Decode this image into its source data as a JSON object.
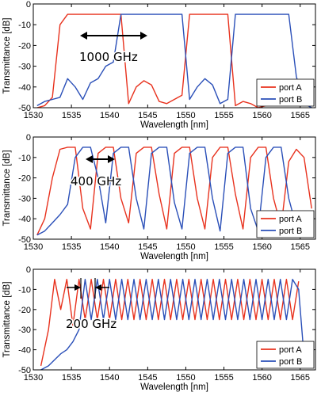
{
  "chart_data": [
    {
      "type": "line",
      "xlabel": "Wavelength [nm]",
      "ylabel": "Transmittance [dB]",
      "xlim": [
        1530,
        1567
      ],
      "ylim": [
        -50,
        0
      ],
      "xticks": [
        1530,
        1535,
        1540,
        1545,
        1550,
        1555,
        1560,
        1565
      ],
      "yticks": [
        0,
        -10,
        -20,
        -30,
        -40,
        -50
      ],
      "legend": "bottom-right",
      "annotation": "1000 GHz",
      "series": [
        {
          "name": "port A",
          "color": "#e8321e",
          "x": [
            1530.5,
            1531.5,
            1532.5,
            1533.5,
            1534.5,
            1535.5,
            1536.5,
            1537.5,
            1538.5,
            1539.5,
            1540.5,
            1541.5,
            1542.5,
            1543.5,
            1544.5,
            1545.5,
            1546.5,
            1547.5,
            1548.5,
            1549.5,
            1550.5,
            1551.5,
            1552.5,
            1553.5,
            1554.5,
            1555.5,
            1556.5,
            1557.5,
            1558.5,
            1559.5,
            1560.5,
            1561.5,
            1562.5,
            1563.5,
            1564.5,
            1565.5,
            1566.5
          ],
          "values": [
            -50,
            -49,
            -45,
            -10,
            -5,
            -5,
            -5,
            -5,
            -5,
            -5,
            -5,
            -5,
            -48,
            -40,
            -37,
            -39,
            -47,
            -48,
            -46,
            -44,
            -5,
            -5,
            -5,
            -5,
            -5,
            -5,
            -49,
            -47,
            -48,
            -50,
            -49,
            -48,
            -47,
            -48,
            -46,
            -47,
            -48
          ]
        },
        {
          "name": "port B",
          "color": "#2a4fb8",
          "x": [
            1530.5,
            1531.5,
            1532.5,
            1533.5,
            1534.5,
            1535.5,
            1536.5,
            1537.5,
            1538.5,
            1539.5,
            1540.5,
            1541.5,
            1542.5,
            1543.5,
            1544.5,
            1545.5,
            1546.5,
            1547.5,
            1548.5,
            1549.5,
            1550.5,
            1551.5,
            1552.5,
            1553.5,
            1554.5,
            1555.5,
            1556.5,
            1557.5,
            1558.5,
            1559.5,
            1560.5,
            1561.5,
            1562.5,
            1563.5,
            1564.5,
            1565.5,
            1566.5
          ],
          "values": [
            -49,
            -47,
            -46,
            -45,
            -36,
            -40,
            -46,
            -38,
            -36,
            -30,
            -28,
            -5,
            -5,
            -5,
            -5,
            -5,
            -5,
            -5,
            -5,
            -5,
            -46,
            -40,
            -36,
            -39,
            -48,
            -46,
            -5,
            -5,
            -5,
            -5,
            -5,
            -5,
            -5,
            -5,
            -35,
            -48,
            -50
          ]
        }
      ]
    },
    {
      "type": "line",
      "xlabel": "Wavelength [nm]",
      "ylabel": "Transmittance [dB]",
      "xlim": [
        1530,
        1567
      ],
      "ylim": [
        -50,
        0
      ],
      "xticks": [
        1530,
        1535,
        1540,
        1545,
        1550,
        1555,
        1560,
        1565
      ],
      "yticks": [
        0,
        -10,
        -20,
        -30,
        -40,
        -50
      ],
      "legend": "bottom-right",
      "annotation": "400 GHz",
      "series": [
        {
          "name": "port A",
          "color": "#e8321e",
          "x": [
            1530.5,
            1531.5,
            1532.5,
            1533.5,
            1534.5,
            1535.5,
            1536.5,
            1537.5,
            1538.5,
            1539.5,
            1540.5,
            1541.5,
            1542.5,
            1543.5,
            1544.5,
            1545.5,
            1546.5,
            1547.5,
            1548.5,
            1549.5,
            1550.5,
            1551.5,
            1552.5,
            1553.5,
            1554.5,
            1555.5,
            1556.5,
            1557.5,
            1558.5,
            1559.5,
            1560.5,
            1561.5,
            1562.5,
            1563.5,
            1564.5,
            1565.5,
            1566.5
          ],
          "values": [
            -48,
            -40,
            -20,
            -6,
            -5,
            -5,
            -35,
            -45,
            -8,
            -5,
            -5,
            -30,
            -42,
            -8,
            -5,
            -5,
            -28,
            -45,
            -8,
            -5,
            -5,
            -30,
            -45,
            -10,
            -5,
            -5,
            -28,
            -45,
            -10,
            -5,
            -5,
            -30,
            -44,
            -12,
            -6,
            -10,
            -35
          ]
        },
        {
          "name": "port B",
          "color": "#2a4fb8",
          "x": [
            1530.5,
            1531.5,
            1532.5,
            1533.5,
            1534.5,
            1535.5,
            1536.5,
            1537.5,
            1538.5,
            1539.5,
            1540.5,
            1541.5,
            1542.5,
            1543.5,
            1544.5,
            1545.5,
            1546.5,
            1547.5,
            1548.5,
            1549.5,
            1550.5,
            1551.5,
            1552.5,
            1553.5,
            1554.5,
            1555.5,
            1556.5,
            1557.5,
            1558.5,
            1559.5,
            1560.5,
            1561.5,
            1562.5,
            1563.5,
            1564.5,
            1565.5,
            1566.5
          ],
          "values": [
            -48,
            -46,
            -42,
            -38,
            -33,
            -10,
            -5,
            -5,
            -20,
            -42,
            -8,
            -5,
            -5,
            -30,
            -45,
            -8,
            -5,
            -5,
            -32,
            -45,
            -8,
            -5,
            -5,
            -30,
            -46,
            -8,
            -5,
            -5,
            -35,
            -46,
            -10,
            -5,
            -5,
            -30,
            -44,
            -45,
            -48
          ]
        }
      ]
    },
    {
      "type": "line",
      "xlabel": "Wavelength [nm]",
      "ylabel": "Transmittance [dB]",
      "xlim": [
        1530,
        1567
      ],
      "ylim": [
        -50,
        0
      ],
      "xticks": [
        1530,
        1535,
        1540,
        1545,
        1550,
        1555,
        1560,
        1565
      ],
      "yticks": [
        0,
        -10,
        -20,
        -30,
        -40,
        -50
      ],
      "legend": "bottom-right",
      "annotation": "200 GHz",
      "series": [
        {
          "name": "port A",
          "color": "#e8321e",
          "x": [
            1531.0,
            1532.0,
            1532.8,
            1533.6,
            1534.4,
            1535.2,
            1536.0,
            1536.8,
            1537.6,
            1538.4,
            1539.2,
            1540.0,
            1540.8,
            1541.6,
            1542.4,
            1543.2,
            1544.0,
            1544.8,
            1545.6,
            1546.4,
            1547.2,
            1548.0,
            1548.8,
            1549.6,
            1550.4,
            1551.2,
            1552.0,
            1552.8,
            1553.6,
            1554.4,
            1555.2,
            1556.0,
            1556.8,
            1557.6,
            1558.4,
            1559.2,
            1560.0,
            1560.8,
            1561.6,
            1562.4,
            1563.2,
            1564.0,
            1564.8
          ],
          "values": [
            -48,
            -30,
            -5,
            -20,
            -5,
            -28,
            -5,
            -25,
            -5,
            -25,
            -5,
            -25,
            -5,
            -25,
            -5,
            -25,
            -5,
            -25,
            -5,
            -25,
            -5,
            -25,
            -5,
            -25,
            -5,
            -25,
            -5,
            -25,
            -5,
            -25,
            -5,
            -25,
            -5,
            -25,
            -5,
            -25,
            -5,
            -25,
            -5,
            -25,
            -5,
            -25,
            -6
          ]
        },
        {
          "name": "port B",
          "color": "#2a4fb8",
          "x": [
            1531.0,
            1532.0,
            1532.8,
            1533.6,
            1534.4,
            1535.2,
            1536.0,
            1536.8,
            1537.6,
            1538.4,
            1539.2,
            1540.0,
            1540.8,
            1541.6,
            1542.4,
            1543.2,
            1544.0,
            1544.8,
            1545.6,
            1546.4,
            1547.2,
            1548.0,
            1548.8,
            1549.6,
            1550.4,
            1551.2,
            1552.0,
            1552.8,
            1553.6,
            1554.4,
            1555.2,
            1556.0,
            1556.8,
            1557.6,
            1558.4,
            1559.2,
            1560.0,
            1560.8,
            1561.6,
            1562.4,
            1563.2,
            1564.0,
            1564.8,
            1565.6
          ],
          "values": [
            -50,
            -48,
            -45,
            -42,
            -40,
            -36,
            -30,
            -5,
            -25,
            -5,
            -25,
            -5,
            -25,
            -5,
            -25,
            -5,
            -25,
            -5,
            -25,
            -5,
            -25,
            -5,
            -25,
            -5,
            -25,
            -5,
            -25,
            -5,
            -25,
            -5,
            -25,
            -5,
            -25,
            -5,
            -25,
            -5,
            -25,
            -5,
            -25,
            -5,
            -25,
            -5,
            -10,
            -48
          ]
        }
      ]
    }
  ]
}
